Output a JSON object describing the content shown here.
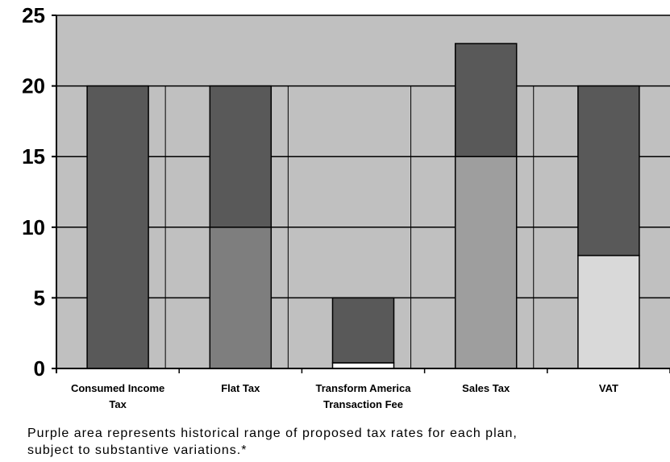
{
  "chart_data": {
    "type": "bar",
    "categories": [
      [
        "Consumed Income",
        "Tax"
      ],
      [
        "Flat Tax"
      ],
      [
        "Transform America",
        "Transaction Fee"
      ],
      [
        "Sales Tax"
      ],
      [
        "VAT"
      ]
    ],
    "ranges": [
      {
        "low": 0,
        "high": 20
      },
      {
        "low": 10,
        "high": 20
      },
      {
        "low": 0.4,
        "high": 5
      },
      {
        "low": 15,
        "high": 23
      },
      {
        "low": 8,
        "high": 20
      }
    ],
    "ylim": [
      0,
      25
    ],
    "yticks": [
      0,
      5,
      10,
      15,
      20,
      25
    ],
    "grid": true,
    "colors": {
      "plot_bg": "#c0c0c0",
      "range_bar": "#595959",
      "base_bars": [
        "#484848",
        "#7e7e7e",
        "#ffffff",
        "#9e9e9e",
        "#d9d9d9"
      ],
      "gridline": "#000000"
    }
  },
  "footnote": {
    "line1": "Purple area represents historical range of proposed tax rates for each plan,",
    "line2": "subject to substantive variations.*"
  }
}
